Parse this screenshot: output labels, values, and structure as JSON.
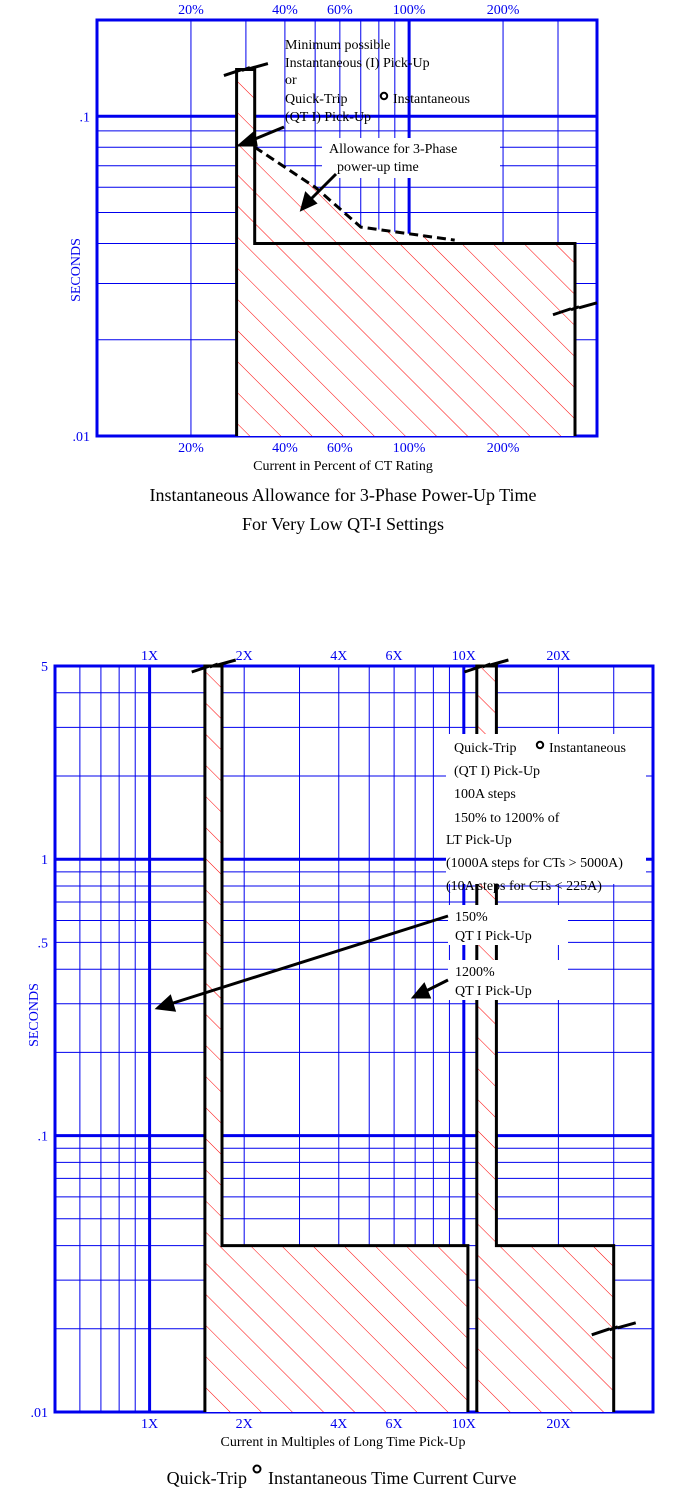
{
  "colors": {
    "grid": "#0000ee",
    "curve": "#000000",
    "hatch": "#ff0000",
    "text": "#000000"
  },
  "chart_data": [
    {
      "type": "area",
      "scale": "log-log",
      "grid": true,
      "xlabel": "Current in Percent of CT Rating",
      "ylabel": "SECONDS",
      "title": "Instantaneous Allowance for 3-Phase Power-Up Time",
      "subtitle": "For Very Low QT-I Settings",
      "xlim": [
        10,
        400
      ],
      "ylim": [
        0.01,
        0.2
      ],
      "x_ticks_top": [
        {
          "v": 20,
          "label": "20%"
        },
        {
          "v": 40,
          "label": "40%"
        },
        {
          "v": 60,
          "label": "60%"
        },
        {
          "v": 100,
          "label": "100%"
        },
        {
          "v": 200,
          "label": "200%"
        }
      ],
      "x_ticks_bottom": [
        {
          "v": 20,
          "label": "20%"
        },
        {
          "v": 40,
          "label": "40%"
        },
        {
          "v": 60,
          "label": "60%"
        },
        {
          "v": 100,
          "label": "100%"
        },
        {
          "v": 200,
          "label": "200%"
        }
      ],
      "y_ticks": [
        {
          "v": 0.1,
          "label": ".1"
        },
        {
          "v": 0.01,
          "label": ".01"
        }
      ],
      "curve": [
        [
          28,
          0.01
        ],
        [
          28,
          0.14
        ],
        [
          32,
          0.14
        ],
        [
          32,
          0.04
        ],
        [
          340,
          0.04
        ],
        [
          340,
          0.01
        ]
      ],
      "break_marks": [
        [
          30,
          0.14
        ],
        [
          340,
          0.025
        ]
      ],
      "dashed_curve": [
        [
          32,
          0.08
        ],
        [
          50,
          0.06
        ],
        [
          70,
          0.045
        ],
        [
          140,
          0.041
        ]
      ],
      "annotations": [
        {
          "lines": [
            "Minimum possible",
            "Instantaneous (I) Pick-Up",
            "or",
            "Quick-Trip",
            "(QT I) Pick-Up"
          ],
          "trip_mark_line": 3,
          "after_mark": "Instantaneous"
        },
        {
          "lines": [
            "Allowance for 3-Phase",
            "power-up time"
          ]
        }
      ]
    },
    {
      "type": "area",
      "scale": "log-log",
      "grid": true,
      "xlabel": "Current in Multiples of Long Time Pick-Up",
      "ylabel": "SECONDS",
      "title": "Quick-Trip",
      "title_after_mark": "Instantaneous Time Current Curve",
      "xlim": [
        0.5,
        40
      ],
      "ylim": [
        0.01,
        5
      ],
      "x_ticks_top": [
        {
          "v": 1,
          "label": "1X"
        },
        {
          "v": 2,
          "label": "2X"
        },
        {
          "v": 4,
          "label": "4X"
        },
        {
          "v": 6,
          "label": "6X"
        },
        {
          "v": 10,
          "label": "10X"
        },
        {
          "v": 20,
          "label": "20X"
        }
      ],
      "x_ticks_bottom": [
        {
          "v": 1,
          "label": "1X"
        },
        {
          "v": 2,
          "label": "2X"
        },
        {
          "v": 4,
          "label": "4X"
        },
        {
          "v": 6,
          "label": "6X"
        },
        {
          "v": 10,
          "label": "10X"
        },
        {
          "v": 20,
          "label": "20X"
        }
      ],
      "y_ticks": [
        {
          "v": 5,
          "label": "5"
        },
        {
          "v": 1,
          "label": "1"
        },
        {
          "v": 0.5,
          "label": ".5"
        },
        {
          "v": 0.1,
          "label": ".1"
        },
        {
          "v": 0.01,
          "label": ".01"
        }
      ],
      "series": [
        {
          "name": "150% QT I Pick-Up",
          "curve": [
            [
              1.5,
              0.01
            ],
            [
              1.5,
              5
            ],
            [
              1.7,
              5
            ],
            [
              1.7,
              0.04
            ],
            [
              10.3,
              0.04
            ],
            [
              10.3,
              0.01
            ]
          ]
        },
        {
          "name": "1200% QT I Pick-Up",
          "curve": [
            [
              11,
              0.01
            ],
            [
              11,
              5
            ],
            [
              12.7,
              5
            ],
            [
              12.7,
              0.04
            ],
            [
              30,
              0.04
            ],
            [
              30,
              0.01
            ]
          ]
        }
      ],
      "break_marks": [
        [
          1.6,
          5
        ],
        [
          11.8,
          5
        ],
        [
          30,
          0.02
        ]
      ],
      "annotations": [
        {
          "lines": [
            "Quick-Trip",
            "(QT I) Pick-Up",
            "100A steps",
            "150% to 1200% of",
            "LT Pick-Up",
            "(1000A steps for CTs > 5000A)",
            "(10A steps for CTs < 225A)"
          ],
          "trip_mark_line": 0,
          "after_mark": "Instantaneous"
        },
        {
          "lines": [
            "150%",
            "QT I Pick-Up"
          ]
        },
        {
          "lines": [
            "1200%",
            "QT I Pick-Up"
          ]
        }
      ]
    }
  ]
}
